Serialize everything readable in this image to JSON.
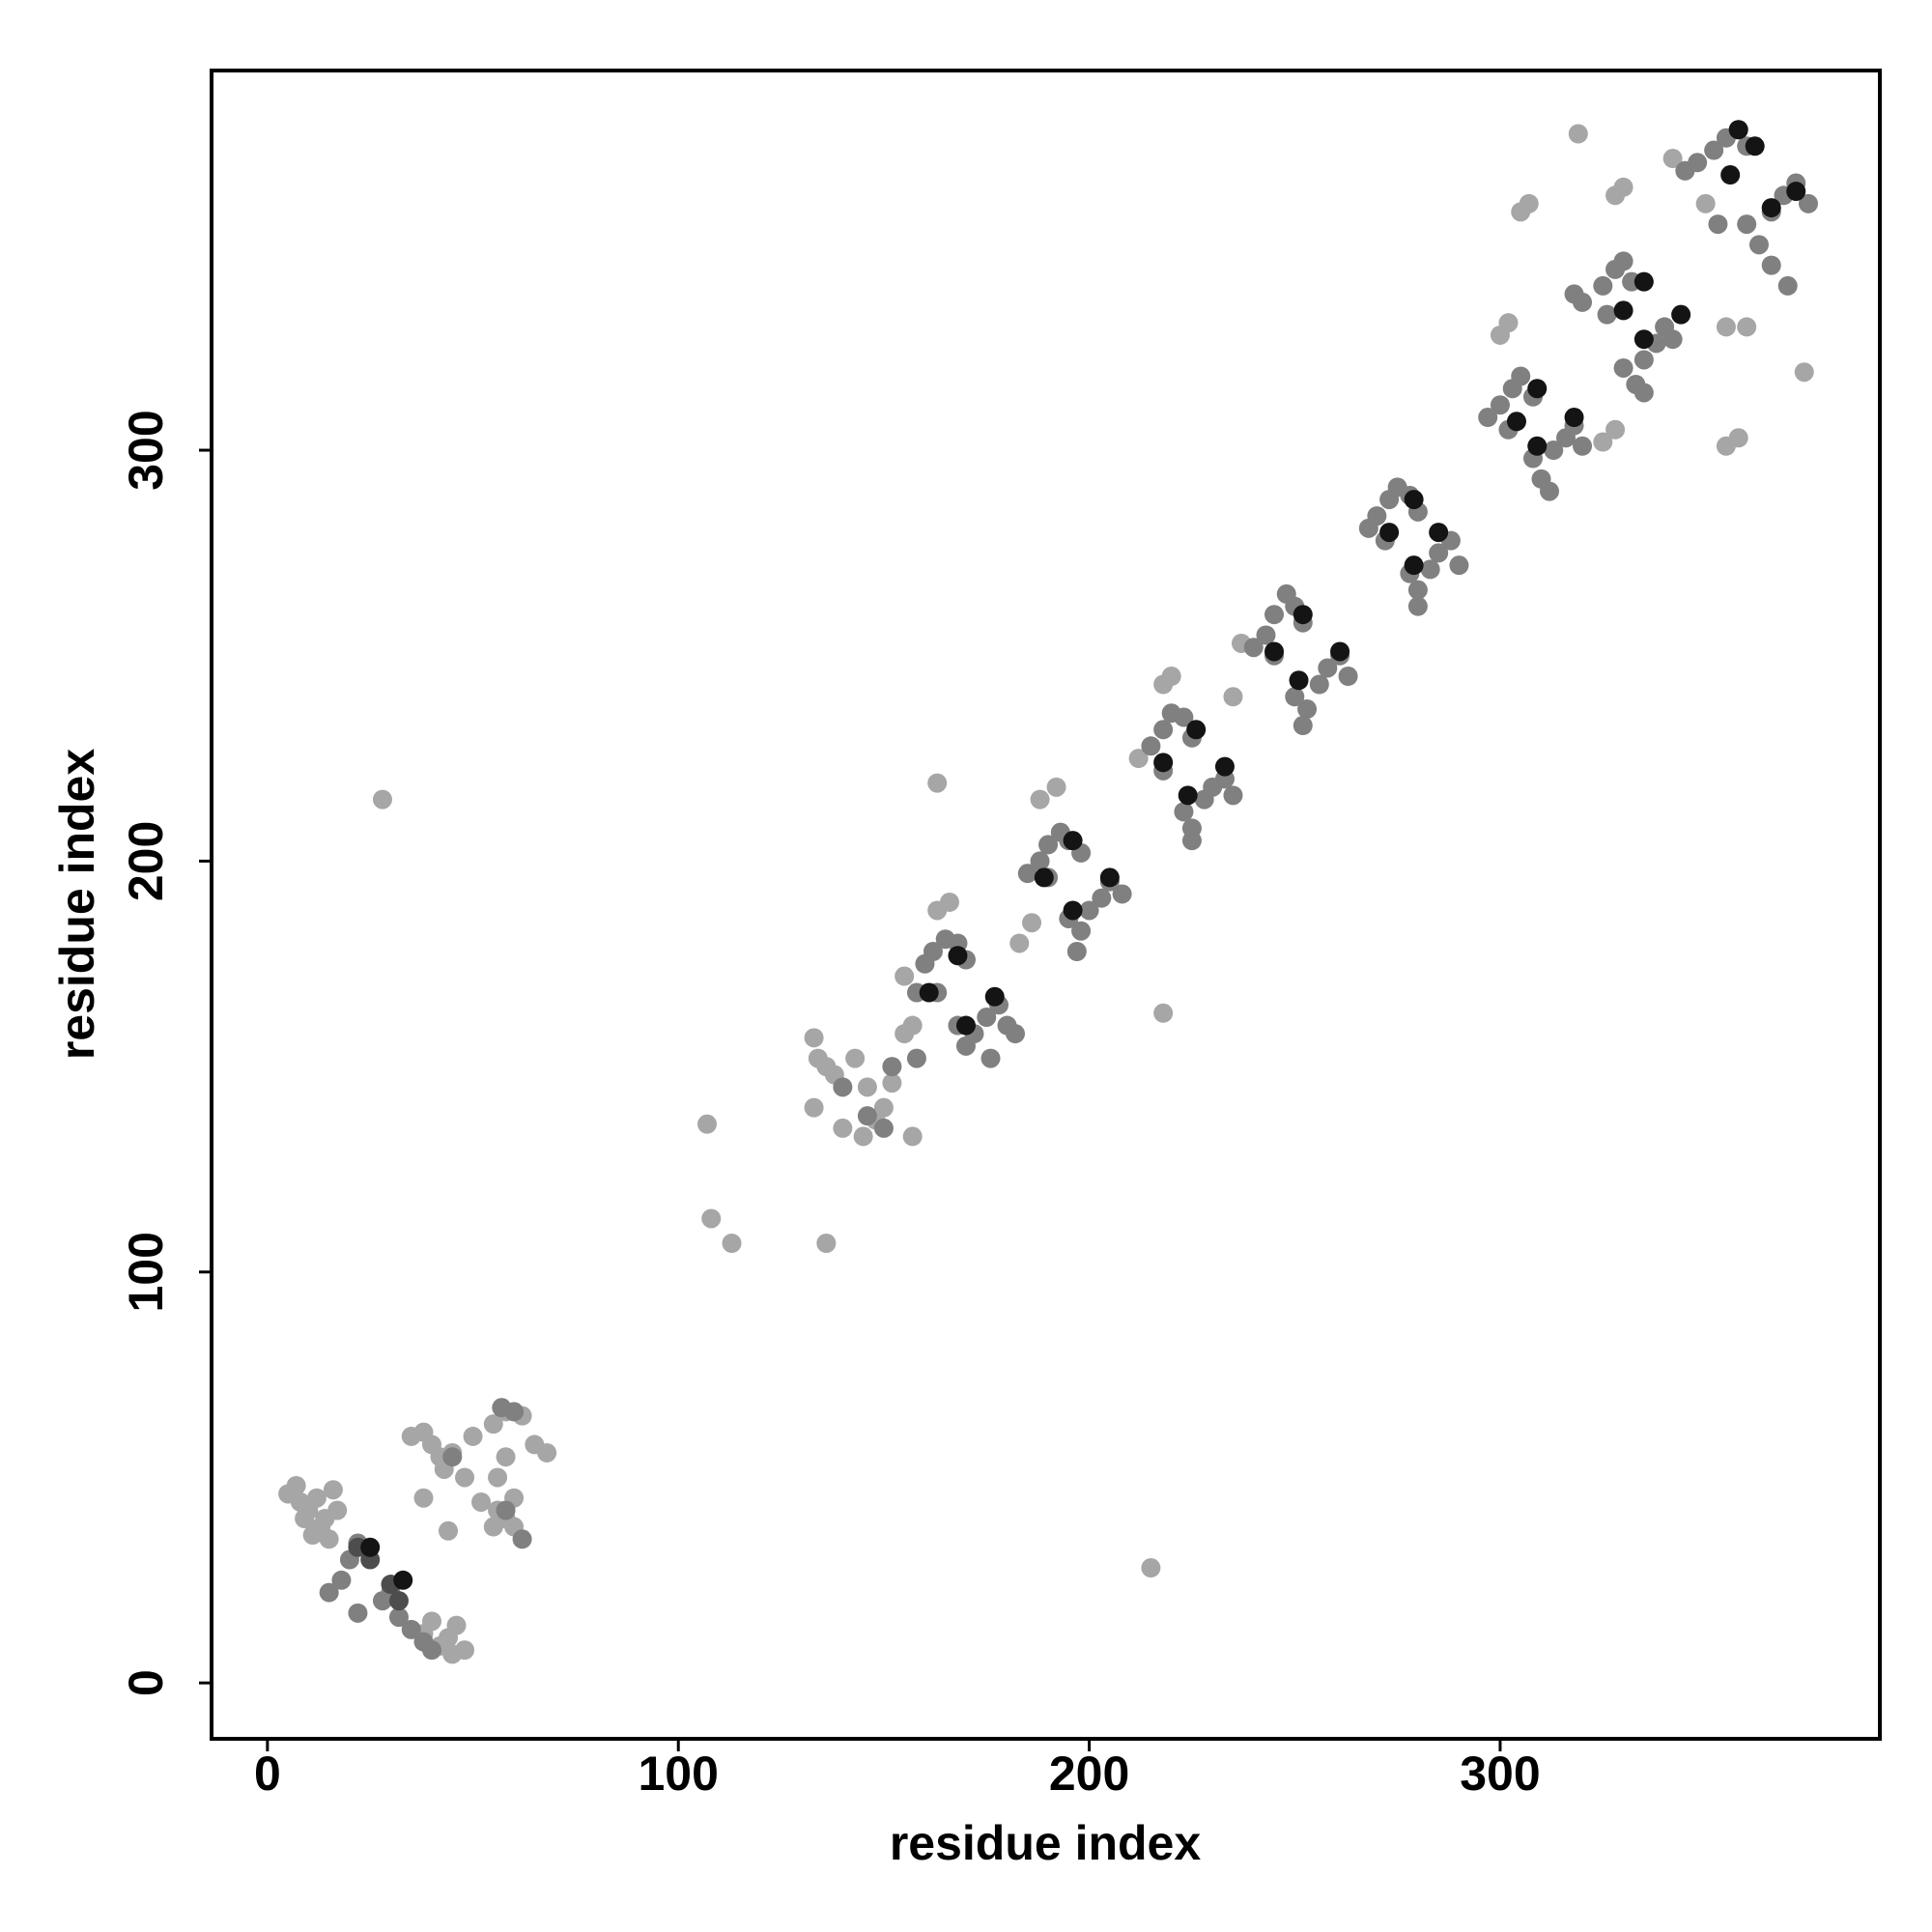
{
  "chart_data": {
    "type": "scatter",
    "xlabel": "residue index",
    "ylabel": "residue index",
    "xlim": [
      -13.6,
      392.4
    ],
    "ylim": [
      -13.6,
      392.4
    ],
    "xticks": [
      0,
      100,
      200,
      300
    ],
    "yticks": [
      0,
      100,
      200,
      300
    ],
    "grid": false,
    "series": [
      {
        "color": "#a6a6a6",
        "x": [
          5,
          7,
          8,
          10,
          12,
          14,
          16,
          17,
          9,
          11,
          13,
          15,
          38,
          42,
          45,
          48,
          46,
          44,
          40,
          35,
          38,
          40,
          42,
          45,
          43,
          48,
          52,
          56,
          58,
          60,
          55,
          50,
          55,
          58,
          62,
          65,
          68,
          60,
          38,
          44,
          56,
          58,
          28,
          107,
          108,
          113,
          136,
          215,
          218,
          163,
          319,
          374,
          133,
          134,
          136,
          138,
          133,
          140,
          145,
          148,
          150,
          152,
          155,
          157,
          143,
          146,
          163,
          166,
          157,
          155,
          188,
          192,
          183,
          186,
          220,
          218,
          212,
          237,
          235,
          300,
          302,
          305,
          307,
          328,
          330,
          325,
          328,
          345,
          342,
          350,
          360,
          355,
          358,
          355
        ],
        "values": [
          46,
          48,
          44,
          42,
          45,
          40,
          47,
          42,
          40,
          36,
          38,
          35,
          12,
          9,
          7,
          8,
          14,
          11,
          15,
          60,
          61,
          58,
          55,
          56,
          52,
          50,
          44,
          42,
          40,
          45,
          38,
          60,
          63,
          66,
          65,
          58,
          56,
          38,
          45,
          37,
          50,
          55,
          215,
          136,
          113,
          107,
          107,
          28,
          163,
          219,
          377,
          319,
          157,
          152,
          150,
          148,
          140,
          135,
          133,
          137,
          140,
          146,
          158,
          133,
          152,
          145,
          188,
          190,
          160,
          172,
          215,
          218,
          180,
          185,
          245,
          243,
          225,
          253,
          240,
          328,
          331,
          358,
          360,
          362,
          364,
          302,
          305,
          368,
          371,
          360,
          330,
          330,
          303,
          301
        ]
      },
      {
        "color": "#808080",
        "x": [
          20,
          22,
          18,
          15,
          22,
          28,
          30,
          32,
          35,
          38,
          40,
          57,
          60,
          45,
          58,
          62,
          140,
          146,
          150,
          152,
          158,
          158,
          160,
          162,
          165,
          168,
          170,
          163,
          168,
          170,
          172,
          175,
          178,
          180,
          176,
          182,
          185,
          188,
          190,
          193,
          195,
          198,
          190,
          195,
          198,
          200,
          203,
          205,
          208,
          197,
          215,
          218,
          220,
          223,
          225,
          218,
          223,
          225,
          228,
          230,
          233,
          235,
          225,
          240,
          243,
          245,
          248,
          250,
          252,
          245,
          250,
          253,
          256,
          258,
          261,
          263,
          252,
          268,
          270,
          273,
          275,
          278,
          280,
          272,
          278,
          280,
          283,
          285,
          288,
          290,
          280,
          297,
          300,
          303,
          305,
          308,
          302,
          308,
          310,
          313,
          316,
          318,
          320,
          312,
          318,
          320,
          325,
          328,
          330,
          332,
          326,
          330,
          333,
          335,
          338,
          340,
          342,
          335,
          345,
          348,
          352,
          355,
          358,
          360,
          353,
          360,
          363,
          366,
          369,
          372,
          375,
          366,
          370
        ],
        "values": [
          30,
          34,
          25,
          22,
          17,
          20,
          22,
          16,
          13,
          10,
          8,
          67,
          66,
          55,
          42,
          35,
          145,
          138,
          135,
          150,
          152,
          168,
          175,
          178,
          181,
          180,
          176,
          168,
          160,
          155,
          158,
          162,
          165,
          160,
          152,
          158,
          197,
          200,
          204,
          207,
          205,
          202,
          196,
          186,
          183,
          188,
          191,
          195,
          192,
          178,
          228,
          232,
          236,
          235,
          230,
          222,
          212,
          208,
          215,
          218,
          220,
          216,
          205,
          252,
          255,
          260,
          265,
          262,
          258,
          250,
          240,
          237,
          243,
          247,
          250,
          245,
          233,
          281,
          284,
          288,
          291,
          289,
          285,
          278,
          270,
          266,
          271,
          275,
          278,
          272,
          262,
          308,
          311,
          315,
          318,
          313,
          305,
          298,
          293,
          300,
          303,
          306,
          301,
          290,
          338,
          336,
          340,
          344,
          346,
          341,
          333,
          320,
          316,
          322,
          326,
          330,
          327,
          314,
          368,
          370,
          373,
          376,
          378,
          374,
          355,
          355,
          350,
          358,
          362,
          365,
          360,
          345,
          340
        ]
      },
      {
        "color": "#4d4d4d",
        "x": [
          22,
          25,
          30,
          32
        ],
        "values": [
          33,
          30,
          24,
          20
        ]
      },
      {
        "color": "#141414",
        "x": [
          25,
          33,
          168,
          161,
          177,
          170,
          196,
          189,
          205,
          196,
          226,
          218,
          233,
          224,
          252,
          245,
          261,
          251,
          279,
          273,
          285,
          279,
          309,
          304,
          318,
          309,
          335,
          330,
          344,
          335,
          362,
          356,
          358,
          366,
          372
        ],
        "values": [
          33,
          25,
          177,
          168,
          167,
          160,
          205,
          196,
          196,
          188,
          232,
          224,
          223,
          216,
          260,
          251,
          251,
          244,
          288,
          280,
          280,
          272,
          315,
          307,
          308,
          301,
          341,
          334,
          333,
          327,
          374,
          367,
          378,
          359,
          363
        ]
      }
    ]
  }
}
